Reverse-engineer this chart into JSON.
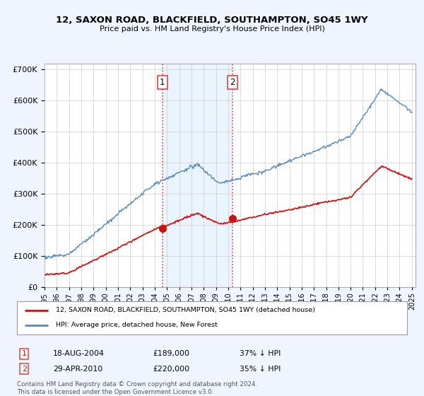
{
  "title": "12, SAXON ROAD, BLACKFIELD, SOUTHAMPTON, SO45 1WY",
  "subtitle": "Price paid vs. HM Land Registry's House Price Index (HPI)",
  "ytick_values": [
    0,
    100000,
    200000,
    300000,
    400000,
    500000,
    600000,
    700000
  ],
  "ylim": [
    0,
    720000
  ],
  "xlim_start": 1995.0,
  "xlim_end": 2025.3,
  "hpi_color": "#5588bb",
  "hpi_fill_color": "#ddeeff",
  "price_color": "#cc1111",
  "vline_color": "#dd4444",
  "marker1_x": 2004.63,
  "marker1_y": 189000,
  "marker2_x": 2010.33,
  "marker2_y": 220000,
  "legend_line1": "12, SAXON ROAD, BLACKFIELD, SOUTHAMPTON, SO45 1WY (detached house)",
  "legend_line2": "HPI: Average price, detached house, New Forest",
  "table_row1": [
    "1",
    "18-AUG-2004",
    "£189,000",
    "37% ↓ HPI"
  ],
  "table_row2": [
    "2",
    "29-APR-2010",
    "£220,000",
    "35% ↓ HPI"
  ],
  "footnote": "Contains HM Land Registry data © Crown copyright and database right 2024.\nThis data is licensed under the Open Government Licence v3.0.",
  "bg_color": "#f0f4ff",
  "plot_bg_color": "#ffffff",
  "grid_color": "#cccccc"
}
